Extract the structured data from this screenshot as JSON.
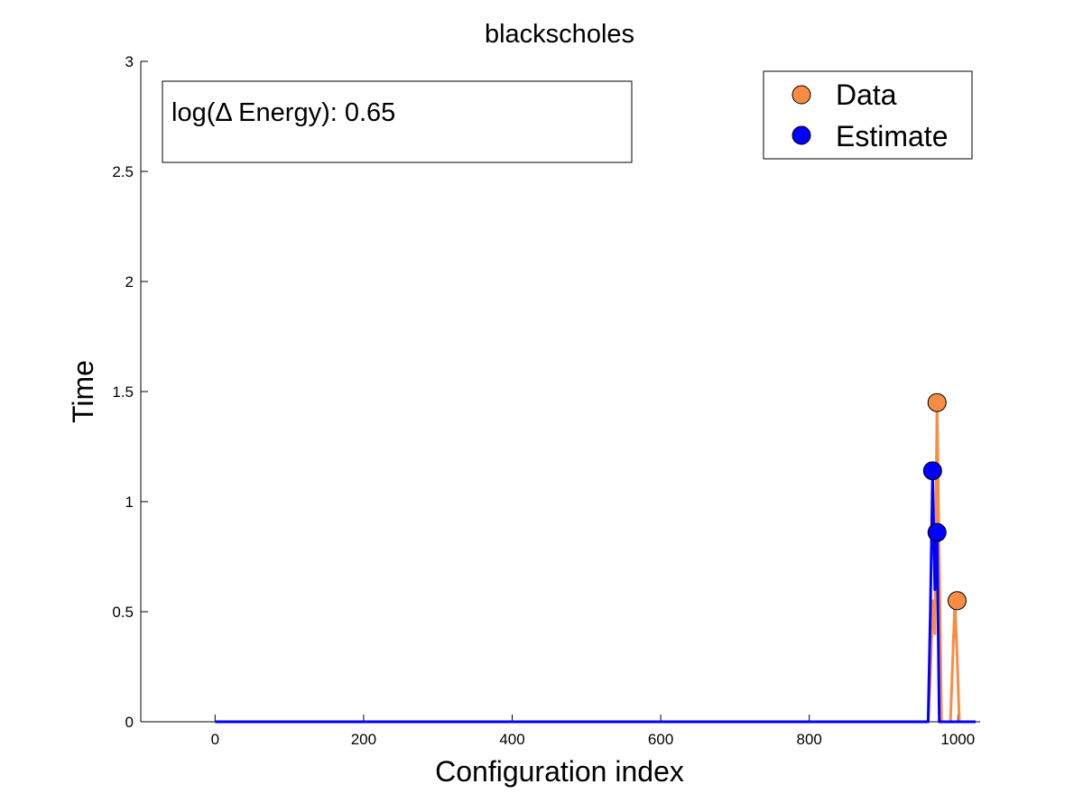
{
  "chart_data": {
    "type": "line",
    "title": "blackscholes",
    "xlabel": "Configuration index",
    "ylabel": "Time",
    "xlim": [
      -100,
      1030
    ],
    "ylim": [
      0,
      3
    ],
    "xticks": [
      0,
      200,
      400,
      600,
      800,
      1000
    ],
    "xtick_labels": [
      "0",
      "200",
      "400",
      "600",
      "800",
      "1000"
    ],
    "yticks": [
      0,
      0.5,
      1,
      1.5,
      2,
      2.5,
      3
    ],
    "ytick_labels": [
      "0",
      "0.5",
      "1",
      "1.5",
      "2",
      "2.5",
      "3"
    ],
    "grid": false,
    "legend_position": "top-right",
    "annotation": "log(Δ Energy): 0.65",
    "series": [
      {
        "name": "Data",
        "color": "#F98C43",
        "x": [
          0,
          960,
          963,
          966,
          969,
          972,
          975,
          978,
          990,
          993,
          996,
          999,
          1002,
          1024
        ],
        "y": [
          0,
          0,
          0.2,
          0.55,
          0.4,
          1.45,
          0.72,
          0,
          0,
          0.27,
          0.55,
          0.3,
          0,
          0
        ],
        "markers_x": [
          972,
          999
        ],
        "markers_y": [
          1.45,
          0.55
        ]
      },
      {
        "name": "Estimate",
        "color": "#0000FF",
        "x": [
          0,
          960,
          963,
          966,
          969,
          972,
          975,
          1024
        ],
        "y": [
          0,
          0,
          0.5,
          1.14,
          0.6,
          0.86,
          0,
          0
        ],
        "markers_x": [
          966,
          972
        ],
        "markers_y": [
          1.14,
          0.86
        ]
      }
    ]
  }
}
